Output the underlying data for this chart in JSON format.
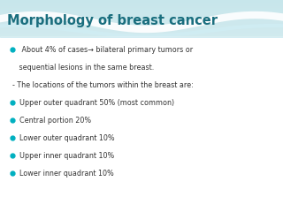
{
  "title": "Morphology of breast cancer",
  "title_color": "#1a6e7e",
  "title_fontsize": 10.5,
  "title_bold": true,
  "bullet_color": "#00b0c0",
  "text_color": "#333333",
  "bullet_lines": [
    " About 4% of cases→ bilateral primary tumors or",
    "   sequential lesions in the same breast.",
    "- The locations of the tumors within the breast are:",
    "Upper outer quadrant 50% (most common)",
    "Central portion 20%",
    "Lower outer quadrant 10%",
    "Upper inner quadrant 10%",
    "Lower inner quadrant 10%"
  ],
  "bullet_flags": [
    true,
    false,
    false,
    true,
    true,
    true,
    true,
    true
  ],
  "font_size": 5.8,
  "bg_color": "#cceef5",
  "wave_color1": "#ffffff",
  "wave_color2": "#a8dde8"
}
